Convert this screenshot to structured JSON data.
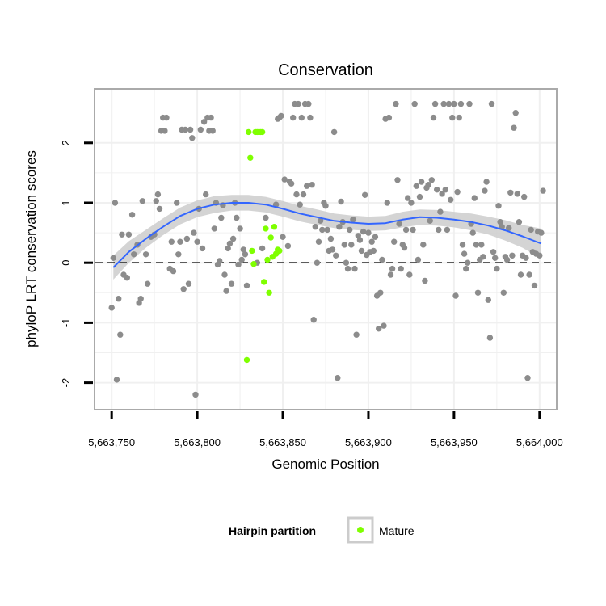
{
  "chart_data": {
    "type": "scatter",
    "title": "Conservation",
    "xlabel": "Genomic Position",
    "ylabel": "phyloP LRT conservation scores",
    "xlim": [
      5663740,
      5664010
    ],
    "ylim": [
      -2.45,
      2.9
    ],
    "x_ticks": [
      5663750,
      5663800,
      5663850,
      5663900,
      5663950,
      5664000
    ],
    "x_tick_labels": [
      "5,663,750",
      "5,663,800",
      "5,663,850",
      "5,663,900",
      "5,663,950",
      "5,664,000"
    ],
    "y_ticks": [
      -2,
      -1,
      0,
      1,
      2
    ],
    "y_tick_labels": [
      "-2",
      "-1",
      "0",
      "1",
      "2"
    ],
    "grid": true,
    "reference_line": {
      "y": 0,
      "style": "dashed"
    },
    "legend": {
      "title": "Hairpin partition",
      "position": "bottom",
      "entries": [
        {
          "label": "Mature",
          "color": "#7fff00"
        }
      ]
    },
    "colors": {
      "other": "#8c8c8c",
      "mature": "#7fff00",
      "smooth": "#3366ff",
      "ribbon": "#cccccc",
      "panel_border": "#aaaaaa",
      "grid": "#f0f0f0"
    },
    "series": [
      {
        "points": [
          [
            5663750,
            -0.75
          ],
          [
            5663751,
            0.08
          ],
          [
            5663752,
            1.0
          ],
          [
            5663753,
            -1.95
          ],
          [
            5663754,
            -0.6
          ],
          [
            5663755,
            -1.2
          ],
          [
            5663756,
            0.47
          ],
          [
            5663757,
            -0.2
          ],
          [
            5663759,
            -0.25
          ],
          [
            5663760,
            0.47
          ],
          [
            5663762,
            0.8
          ],
          [
            5663763,
            0.14
          ],
          [
            5663765,
            0.3
          ],
          [
            5663766,
            -0.67
          ],
          [
            5663767,
            -0.6
          ],
          [
            5663768,
            1.03
          ],
          [
            5663770,
            0.14
          ],
          [
            5663771,
            -0.35
          ],
          [
            5663773,
            0.43
          ],
          [
            5663775,
            0.47
          ],
          [
            5663776,
            1.03
          ],
          [
            5663777,
            1.14
          ],
          [
            5663778,
            0.9
          ],
          [
            5663779,
            2.2
          ],
          [
            5663780,
            2.42
          ],
          [
            5663781,
            2.2
          ],
          [
            5663782,
            2.42
          ],
          [
            5663784,
            -0.1
          ],
          [
            5663785,
            0.35
          ],
          [
            5663786,
            -0.14
          ],
          [
            5663788,
            1.0
          ],
          [
            5663789,
            0.14
          ],
          [
            5663790,
            0.35
          ],
          [
            5663791,
            2.22
          ],
          [
            5663792,
            -0.44
          ],
          [
            5663793,
            2.22
          ],
          [
            5663794,
            0.4
          ],
          [
            5663795,
            -0.35
          ],
          [
            5663796,
            2.22
          ],
          [
            5663797,
            2.08
          ],
          [
            5663798,
            0.5
          ],
          [
            5663799,
            -2.2
          ],
          [
            5663800,
            0.35
          ],
          [
            5663801,
            0.9
          ],
          [
            5663802,
            2.22
          ],
          [
            5663803,
            0.24
          ],
          [
            5663804,
            2.35
          ],
          [
            5663805,
            1.14
          ],
          [
            5663806,
            2.42
          ],
          [
            5663807,
            2.2
          ],
          [
            5663808,
            2.42
          ],
          [
            5663809,
            2.2
          ],
          [
            5663810,
            0.57
          ],
          [
            5663811,
            1.0
          ],
          [
            5663812,
            -0.03
          ],
          [
            5663813,
            0.03
          ],
          [
            5663814,
            0.75
          ],
          [
            5663815,
            0.96
          ],
          [
            5663816,
            -0.2
          ],
          [
            5663817,
            -0.47
          ],
          [
            5663818,
            0.24
          ],
          [
            5663819,
            0.32
          ],
          [
            5663820,
            -0.35
          ],
          [
            5663821,
            0.4
          ],
          [
            5663822,
            1.0
          ],
          [
            5663823,
            0.75
          ],
          [
            5663824,
            -0.03
          ],
          [
            5663825,
            0.57
          ],
          [
            5663826,
            0.05
          ],
          [
            5663827,
            0.22
          ],
          [
            5663828,
            0.14
          ],
          [
            5663829,
            -0.38
          ],
          [
            5663835,
            0.0
          ],
          [
            5663838,
            0.24
          ],
          [
            5663840,
            0.75
          ],
          [
            5663846,
            0.97
          ],
          [
            5663847,
            2.4
          ],
          [
            5663848,
            2.42
          ],
          [
            5663849,
            2.45
          ],
          [
            5663850,
            0.43
          ],
          [
            5663851,
            1.39
          ],
          [
            5663853,
            0.28
          ],
          [
            5663854,
            1.35
          ],
          [
            5663855,
            1.32
          ],
          [
            5663856,
            2.42
          ],
          [
            5663857,
            2.65
          ],
          [
            5663858,
            1.14
          ],
          [
            5663859,
            2.65
          ],
          [
            5663860,
            0.97
          ],
          [
            5663861,
            2.42
          ],
          [
            5663862,
            1.14
          ],
          [
            5663863,
            2.65
          ],
          [
            5663864,
            1.28
          ],
          [
            5663865,
            2.65
          ],
          [
            5663866,
            2.42
          ],
          [
            5663867,
            1.3
          ],
          [
            5663868,
            -0.95
          ],
          [
            5663869,
            0.6
          ],
          [
            5663870,
            0.0
          ],
          [
            5663871,
            0.35
          ],
          [
            5663872,
            0.7
          ],
          [
            5663873,
            0.55
          ],
          [
            5663874,
            1.0
          ],
          [
            5663875,
            0.95
          ],
          [
            5663876,
            0.55
          ],
          [
            5663877,
            0.2
          ],
          [
            5663878,
            0.4
          ],
          [
            5663879,
            0.22
          ],
          [
            5663880,
            2.18
          ],
          [
            5663881,
            0.12
          ],
          [
            5663882,
            -1.92
          ],
          [
            5663883,
            0.6
          ],
          [
            5663884,
            1.02
          ],
          [
            5663885,
            0.68
          ],
          [
            5663886,
            0.3
          ],
          [
            5663887,
            0.0
          ],
          [
            5663888,
            -0.1
          ],
          [
            5663889,
            0.55
          ],
          [
            5663890,
            0.3
          ],
          [
            5663891,
            0.72
          ],
          [
            5663892,
            -0.1
          ],
          [
            5663893,
            -1.2
          ],
          [
            5663894,
            0.45
          ],
          [
            5663895,
            0.38
          ],
          [
            5663896,
            0.2
          ],
          [
            5663897,
            0.52
          ],
          [
            5663898,
            1.13
          ],
          [
            5663899,
            0.13
          ],
          [
            5663900,
            0.5
          ],
          [
            5663901,
            0.18
          ],
          [
            5663902,
            0.35
          ],
          [
            5663903,
            0.2
          ],
          [
            5663904,
            0.43
          ],
          [
            5663905,
            -0.55
          ],
          [
            5663906,
            -1.1
          ],
          [
            5663907,
            -0.5
          ],
          [
            5663908,
            0.05
          ],
          [
            5663909,
            -1.05
          ],
          [
            5663910,
            2.4
          ],
          [
            5663911,
            1.0
          ],
          [
            5663912,
            2.42
          ],
          [
            5663913,
            -0.2
          ],
          [
            5663914,
            -0.1
          ],
          [
            5663915,
            0.35
          ],
          [
            5663916,
            2.65
          ],
          [
            5663917,
            1.38
          ],
          [
            5663918,
            0.65
          ],
          [
            5663919,
            -0.1
          ],
          [
            5663920,
            0.3
          ],
          [
            5663921,
            0.25
          ],
          [
            5663922,
            0.55
          ],
          [
            5663923,
            1.08
          ],
          [
            5663924,
            -0.2
          ],
          [
            5663925,
            1.0
          ],
          [
            5663926,
            0.55
          ],
          [
            5663927,
            2.65
          ],
          [
            5663928,
            1.28
          ],
          [
            5663929,
            0.05
          ],
          [
            5663930,
            1.1
          ],
          [
            5663931,
            1.35
          ],
          [
            5663932,
            0.3
          ],
          [
            5663933,
            -0.3
          ],
          [
            5663934,
            1.25
          ],
          [
            5663935,
            1.3
          ],
          [
            5663936,
            0.7
          ],
          [
            5663937,
            1.38
          ],
          [
            5663938,
            2.42
          ],
          [
            5663939,
            2.65
          ],
          [
            5663940,
            1.22
          ],
          [
            5663941,
            0.55
          ],
          [
            5663942,
            0.85
          ],
          [
            5663943,
            1.15
          ],
          [
            5663944,
            2.65
          ],
          [
            5663945,
            1.22
          ],
          [
            5663946,
            0.55
          ],
          [
            5663947,
            2.65
          ],
          [
            5663948,
            1.05
          ],
          [
            5663949,
            2.42
          ],
          [
            5663950,
            2.65
          ],
          [
            5663951,
            -0.55
          ],
          [
            5663952,
            1.18
          ],
          [
            5663953,
            2.42
          ],
          [
            5663954,
            2.65
          ],
          [
            5663955,
            0.3
          ],
          [
            5663956,
            0.15
          ],
          [
            5663957,
            -0.1
          ],
          [
            5663958,
            0.0
          ],
          [
            5663959,
            2.65
          ],
          [
            5663960,
            0.65
          ],
          [
            5663961,
            0.5
          ],
          [
            5663962,
            1.08
          ],
          [
            5663963,
            0.3
          ],
          [
            5663964,
            -0.5
          ],
          [
            5663965,
            0.05
          ],
          [
            5663966,
            0.3
          ],
          [
            5663967,
            0.1
          ],
          [
            5663968,
            1.2
          ],
          [
            5663969,
            1.35
          ],
          [
            5663970,
            -0.62
          ],
          [
            5663971,
            -1.25
          ],
          [
            5663972,
            2.65
          ],
          [
            5663973,
            0.18
          ],
          [
            5663974,
            0.08
          ],
          [
            5663975,
            -0.1
          ],
          [
            5663976,
            0.95
          ],
          [
            5663977,
            0.68
          ],
          [
            5663978,
            0.6
          ],
          [
            5663979,
            -0.5
          ],
          [
            5663980,
            0.1
          ],
          [
            5663981,
            0.05
          ],
          [
            5663982,
            0.58
          ],
          [
            5663983,
            1.17
          ],
          [
            5663984,
            0.12
          ],
          [
            5663985,
            2.25
          ],
          [
            5663986,
            2.5
          ],
          [
            5663987,
            1.15
          ],
          [
            5663988,
            0.68
          ],
          [
            5663989,
            -0.2
          ],
          [
            5663990,
            0.12
          ],
          [
            5663991,
            1.1
          ],
          [
            5663992,
            0.08
          ],
          [
            5663993,
            -1.92
          ],
          [
            5663994,
            -0.2
          ],
          [
            5663995,
            0.55
          ],
          [
            5663996,
            0.18
          ],
          [
            5663997,
            -0.38
          ],
          [
            5663998,
            0.15
          ],
          [
            5663999,
            0.52
          ],
          [
            5664000,
            0.12
          ],
          [
            5664001,
            0.5
          ],
          [
            5664002,
            1.2
          ]
        ]
      },
      {
        "name": "Mature",
        "points": [
          [
            5663829,
            -1.62
          ],
          [
            5663830,
            2.18
          ],
          [
            5663831,
            1.75
          ],
          [
            5663832,
            0.2
          ],
          [
            5663833,
            -0.02
          ],
          [
            5663834,
            2.18
          ],
          [
            5663835,
            2.18
          ],
          [
            5663836,
            2.18
          ],
          [
            5663837,
            2.18
          ],
          [
            5663838,
            2.18
          ],
          [
            5663839,
            -0.32
          ],
          [
            5663840,
            0.57
          ],
          [
            5663841,
            0.05
          ],
          [
            5663842,
            -0.5
          ],
          [
            5663843,
            0.42
          ],
          [
            5663844,
            0.1
          ],
          [
            5663845,
            0.6
          ],
          [
            5663846,
            0.15
          ],
          [
            5663847,
            0.22
          ],
          [
            5663848,
            0.2
          ]
        ]
      }
    ],
    "smooth": {
      "x": [
        5663751,
        5663760,
        5663770,
        5663780,
        5663790,
        5663800,
        5663810,
        5663820,
        5663830,
        5663840,
        5663850,
        5663860,
        5663870,
        5663880,
        5663890,
        5663900,
        5663910,
        5663920,
        5663930,
        5663940,
        5663950,
        5663960,
        5663970,
        5663980,
        5663990,
        5664001
      ],
      "y": [
        -0.08,
        0.18,
        0.4,
        0.6,
        0.78,
        0.9,
        0.97,
        1.0,
        1.0,
        0.97,
        0.9,
        0.82,
        0.76,
        0.7,
        0.67,
        0.65,
        0.66,
        0.72,
        0.76,
        0.75,
        0.72,
        0.68,
        0.62,
        0.54,
        0.44,
        0.32
      ],
      "lower": [
        -0.28,
        0.0,
        0.25,
        0.46,
        0.64,
        0.76,
        0.83,
        0.87,
        0.87,
        0.84,
        0.77,
        0.69,
        0.63,
        0.58,
        0.55,
        0.53,
        0.54,
        0.59,
        0.63,
        0.62,
        0.59,
        0.54,
        0.47,
        0.37,
        0.25,
        0.07
      ],
      "upper": [
        0.12,
        0.36,
        0.55,
        0.74,
        0.92,
        1.04,
        1.11,
        1.13,
        1.13,
        1.1,
        1.03,
        0.95,
        0.89,
        0.82,
        0.79,
        0.77,
        0.78,
        0.85,
        0.89,
        0.88,
        0.85,
        0.82,
        0.77,
        0.71,
        0.63,
        0.57
      ]
    }
  }
}
